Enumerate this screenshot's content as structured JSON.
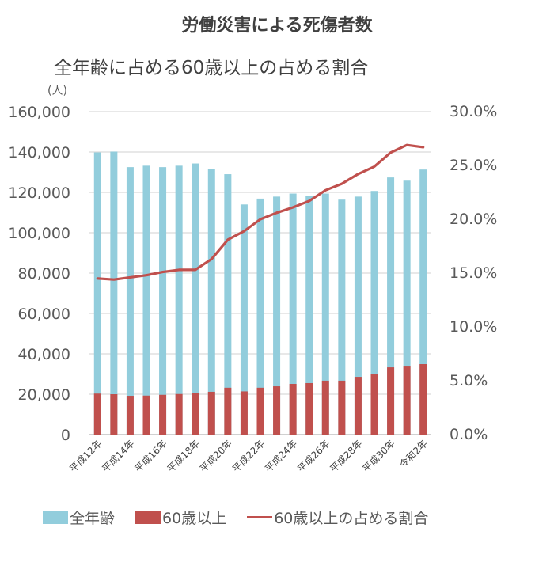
{
  "chart_data": {
    "type": "bar",
    "title": "労働災害による死傷者数",
    "subtitle": "全年齢に占める60歳以上の占める割合",
    "y_unit_label": "(人)",
    "categories": [
      "平成12年",
      "平成13年",
      "平成14年",
      "平成15年",
      "平成16年",
      "平成17年",
      "平成18年",
      "平成19年",
      "平成20年",
      "平成21年",
      "平成22年",
      "平成23年",
      "平成24年",
      "平成25年",
      "平成26年",
      "平成27年",
      "平成28年",
      "平成29年",
      "平成30年",
      "令和元年",
      "令和2年"
    ],
    "shown_category_labels": [
      "平成12年",
      "平成14年",
      "平成16年",
      "平成18年",
      "平成20年",
      "平成22年",
      "平成24年",
      "平成26年",
      "平成28年",
      "平成30年",
      "令和2年"
    ],
    "series": [
      {
        "name": "全年齢",
        "kind": "bar",
        "axis": "left",
        "color": "#92cddc",
        "values": [
          139800,
          140200,
          132500,
          133200,
          132500,
          133200,
          134300,
          131600,
          129000,
          114000,
          116900,
          117900,
          119400,
          118100,
          119400,
          116400,
          117900,
          120700,
          127400,
          125800,
          131300
        ]
      },
      {
        "name": "60歳以上",
        "kind": "bar",
        "axis": "left",
        "color": "#c0504d",
        "values": [
          20300,
          20000,
          19200,
          19300,
          19700,
          20100,
          20400,
          21200,
          23200,
          21400,
          23200,
          23900,
          25100,
          25500,
          26700,
          26700,
          28600,
          29800,
          33300,
          33700,
          34900
        ]
      },
      {
        "name": "60歳以上の占める割合",
        "kind": "line",
        "axis": "right",
        "color": "#c0504d",
        "values": [
          14.5,
          14.4,
          14.6,
          14.8,
          15.1,
          15.3,
          15.3,
          16.3,
          18.1,
          18.9,
          20.0,
          20.6,
          21.1,
          21.7,
          22.7,
          23.3,
          24.2,
          24.9,
          26.2,
          26.9,
          26.7
        ]
      }
    ],
    "y_left": {
      "min": 0,
      "max": 160000,
      "ticks": [
        "0",
        "20,000",
        "40,000",
        "60,000",
        "80,000",
        "100,000",
        "120,000",
        "140,000",
        "160,000"
      ]
    },
    "y_right": {
      "min": 0,
      "max": 30,
      "ticks": [
        "0.0%",
        "5.0%",
        "10.0%",
        "15.0%",
        "20.0%",
        "25.0%",
        "30.0%"
      ]
    },
    "grid": true,
    "legend_position": "bottom"
  }
}
